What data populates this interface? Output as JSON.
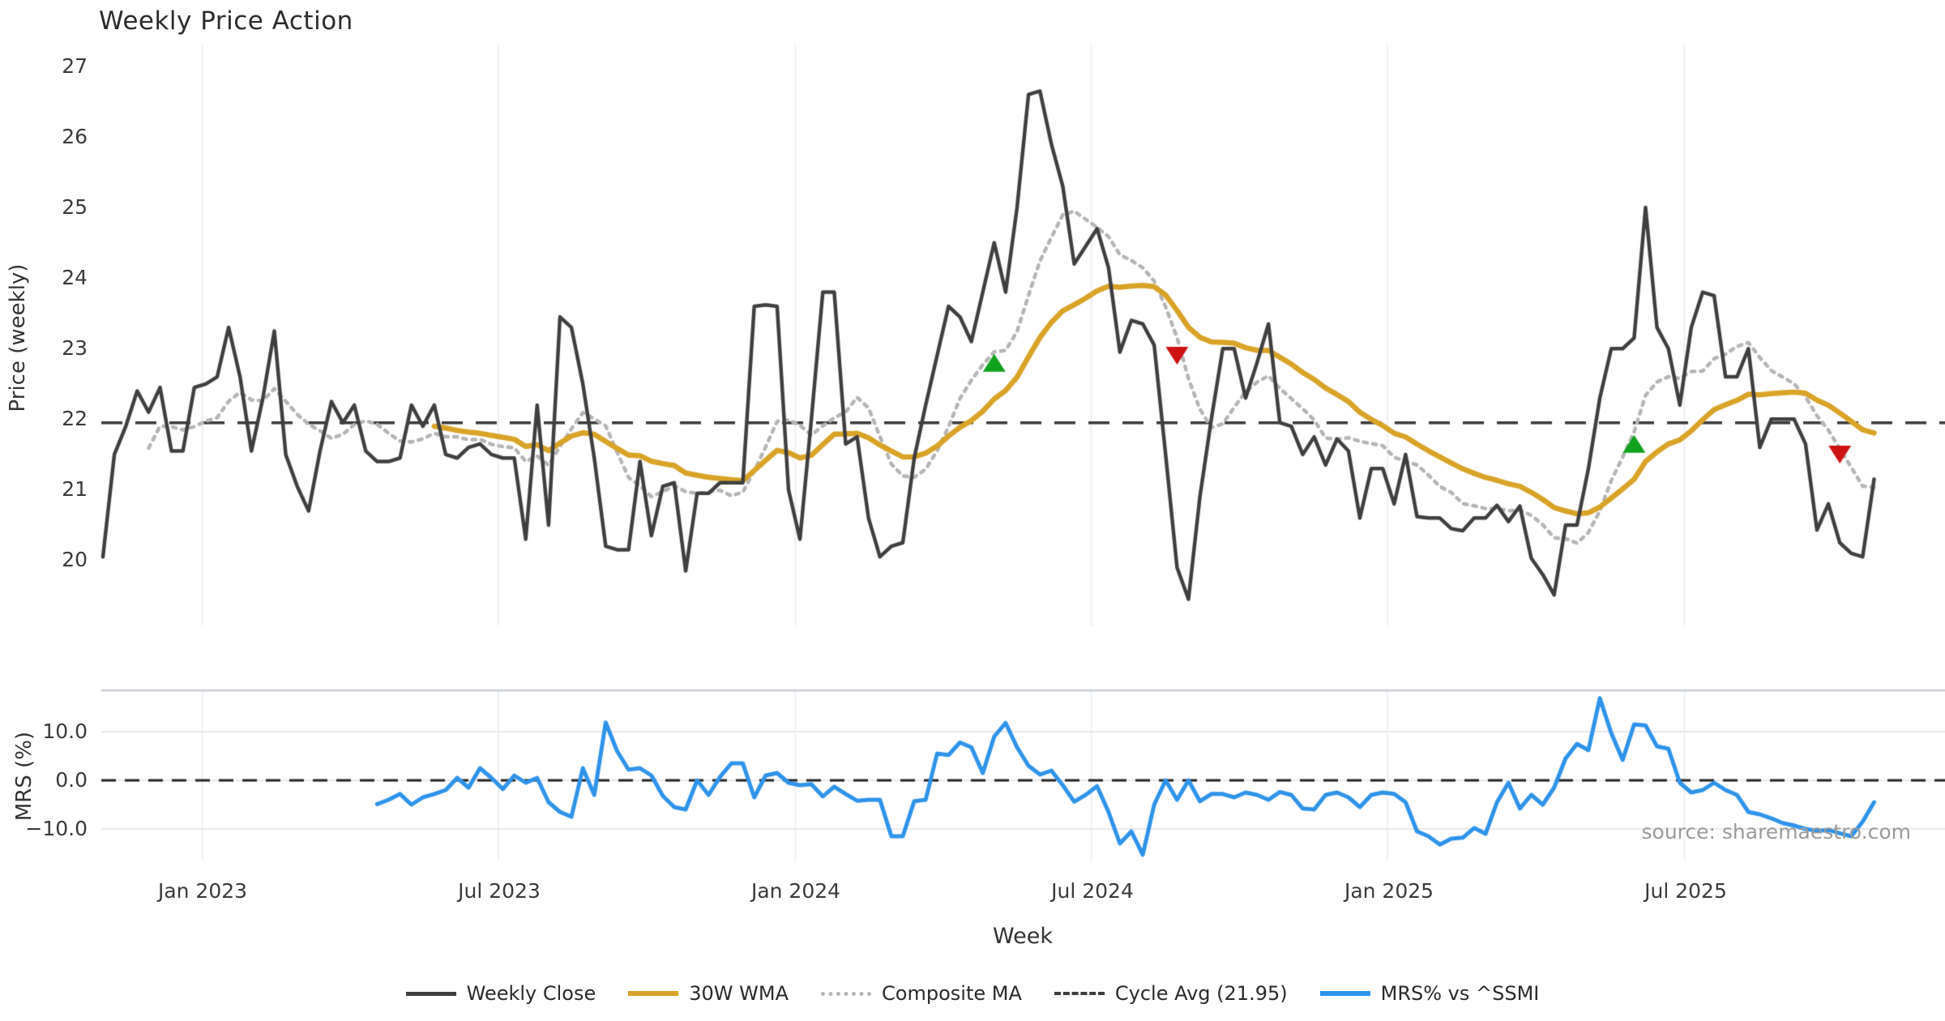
{
  "title": "Weekly Price Action",
  "source_note": "source: sharemaestro.com",
  "axes": {
    "price_label": "Price (weekly)",
    "mrs_label": "MRS (%)",
    "x_label": "Week",
    "price_ticks": [
      "27",
      "26",
      "25",
      "24",
      "23",
      "22",
      "21",
      "20"
    ],
    "mrs_ticks": [
      "10.0",
      "0.0",
      "−10.0"
    ],
    "x_ticks": [
      "Jan 2023",
      "Jul 2023",
      "Jan 2024",
      "Jul 2024",
      "Jan 2025",
      "Jul 2025"
    ]
  },
  "legend": [
    {
      "label": "Weekly Close",
      "style": "solid",
      "color": "#3f3f3f"
    },
    {
      "label": "30W WMA",
      "style": "solid",
      "color": "#d8a327"
    },
    {
      "label": "Composite MA",
      "style": "dotted",
      "color": "#b5b5b5"
    },
    {
      "label": "Cycle Avg (21.95)",
      "style": "dashed",
      "color": "#3a3a3a"
    },
    {
      "label": "MRS% vs ^SSMI",
      "style": "solid",
      "color": "#2e93ea"
    }
  ],
  "colors": {
    "close": "#3f3f3f",
    "wma": "#d8a327",
    "composite": "#b5b5b5",
    "cycle_dash": "#3a3a3a",
    "mrs": "#2e93ea",
    "buy_marker": "#11a21d",
    "sell_marker": "#cc1212",
    "grid_vertical": "#edeff3",
    "grid_horizontal": "#e8e8ec",
    "panel_spine": "#c6cbd3",
    "zero_dash": "#222222"
  },
  "chart_data": {
    "type": "line",
    "n_weeks": 156,
    "x": {
      "label": "Week",
      "tick_labels": [
        "Jan 2023",
        "Jul 2023",
        "Jan 2024",
        "Jul 2024",
        "Jan 2025",
        "Jul 2025"
      ],
      "tick_weeks": [
        8.7,
        34.6,
        60.6,
        86.5,
        112.4,
        138.4
      ]
    },
    "panels": [
      {
        "id": "price",
        "ylabel": "Price (weekly)",
        "ylim": [
          19.1,
          27.4
        ],
        "yticks": [
          20,
          21,
          22,
          23,
          24,
          25,
          26,
          27
        ],
        "cycle_avg": 21.95,
        "series": [
          {
            "name": "Weekly Close",
            "style": "solid",
            "values": [
              20.05,
              21.5,
              21.9,
              22.4,
              22.1,
              22.45,
              21.55,
              21.55,
              22.45,
              22.5,
              22.6,
              23.3,
              22.6,
              21.55,
              22.3,
              23.25,
              21.5,
              21.05,
              20.7,
              21.55,
              22.25,
              21.95,
              22.2,
              21.55,
              21.4,
              21.4,
              21.45,
              22.2,
              21.9,
              22.2,
              21.5,
              21.45,
              21.6,
              21.65,
              21.5,
              21.45,
              21.45,
              20.3,
              22.2,
              20.5,
              23.45,
              23.3,
              22.5,
              21.45,
              20.2,
              20.15,
              20.15,
              21.4,
              20.35,
              21.05,
              21.1,
              19.85,
              20.95,
              20.95,
              21.1,
              21.1,
              21.1,
              23.6,
              23.62,
              23.6,
              21.0,
              20.3,
              22.0,
              23.8,
              23.8,
              21.65,
              21.75,
              20.6,
              20.05,
              20.2,
              20.25,
              21.45,
              22.2,
              22.9,
              23.6,
              23.45,
              23.1,
              23.8,
              24.5,
              23.8,
              25.0,
              26.6,
              26.65,
              25.9,
              25.3,
              24.2,
              24.45,
              24.7,
              24.15,
              22.95,
              23.4,
              23.35,
              23.05,
              21.5,
              19.9,
              19.45,
              20.9,
              22.0,
              23.0,
              23.0,
              22.3,
              22.8,
              23.35,
              21.95,
              21.9,
              21.5,
              21.75,
              21.35,
              21.72,
              21.55,
              20.6,
              21.3,
              21.3,
              20.8,
              21.5,
              20.62,
              20.6,
              20.6,
              20.45,
              20.42,
              20.6,
              20.6,
              20.78,
              20.55,
              20.77,
              20.03,
              19.8,
              19.51,
              20.5,
              20.5,
              21.3,
              22.3,
              23.0,
              23.0,
              23.15,
              25.0,
              23.3,
              23.0,
              22.2,
              23.3,
              23.8,
              23.75,
              22.6,
              22.6,
              23.0,
              21.6,
              22.0,
              22.0,
              22.0,
              21.65,
              20.43,
              20.8,
              20.25,
              20.1,
              20.05,
              21.15
            ]
          },
          {
            "name": "30W WMA",
            "style": "solid",
            "derived": "weighted_ma_30_of_weekly_close",
            "window": 30
          },
          {
            "name": "Composite MA",
            "style": "dotted",
            "derived": "mean_of_sma5_and_sma15_of_weekly_close",
            "windows": [
              5,
              15
            ]
          },
          {
            "name": "Cycle Avg (21.95)",
            "style": "dashed",
            "value": 21.95
          }
        ],
        "markers": {
          "buy": [
            {
              "week": 78,
              "price": 22.8
            },
            {
              "week": 134,
              "price": 21.65
            }
          ],
          "sell": [
            {
              "week": 94,
              "price": 22.9
            },
            {
              "week": 152,
              "price": 21.5
            }
          ]
        }
      },
      {
        "id": "mrs",
        "ylabel": "MRS (%)",
        "ylim": [
          -16.2,
          18.5
        ],
        "yticks": [
          -10,
          0,
          10
        ],
        "zero_line": 0,
        "series": [
          {
            "name": "MRS% vs ^SSMI",
            "style": "solid",
            "start_week": 24,
            "values": [
              -4.9,
              -4.0,
              -2.8,
              -5.0,
              -3.5,
              -2.8,
              -2.0,
              0.5,
              -1.5,
              2.5,
              0.5,
              -1.8,
              1.0,
              -0.5,
              0.5,
              -4.5,
              -6.5,
              -7.5,
              2.5,
              -3.0,
              11.9,
              6.0,
              2.2,
              2.5,
              1.0,
              -3.2,
              -5.5,
              -6.0,
              0.0,
              -3.0,
              0.7,
              3.5,
              3.5,
              -3.5,
              1.0,
              1.5,
              -0.5,
              -1.0,
              -0.8,
              -3.3,
              -1.3,
              -2.8,
              -4.2,
              -4.0,
              -4.0,
              -11.5,
              -11.5,
              -4.3,
              -4.0,
              5.5,
              5.2,
              7.8,
              6.8,
              1.5,
              9.0,
              11.8,
              6.8,
              3.0,
              1.2,
              2.0,
              -1.0,
              -4.4,
              -3.0,
              -1.2,
              -6.5,
              -13.0,
              -10.5,
              -15.3,
              -5.0,
              0.0,
              -4.0,
              0.0,
              -4.3,
              -2.8,
              -2.8,
              -3.5,
              -2.5,
              -3.0,
              -4.0,
              -2.4,
              -3.0,
              -5.8,
              -6.0,
              -3.0,
              -2.5,
              -3.5,
              -5.5,
              -3.0,
              -2.5,
              -2.8,
              -4.5,
              -10.5,
              -11.5,
              -13.2,
              -12.0,
              -11.8,
              -9.8,
              -11.0,
              -4.5,
              -0.5,
              -5.8,
              -3.0,
              -5.0,
              -1.5,
              4.5,
              7.5,
              6.2,
              16.9,
              9.7,
              4.2,
              11.5,
              11.3,
              7.0,
              6.5,
              -0.5,
              -2.5,
              -2.0,
              -0.5,
              -2.0,
              -3.0,
              -6.5,
              -7.0,
              -7.8,
              -8.8,
              -9.3,
              -10.0,
              -10.4,
              -10.2,
              -10.9,
              -11.5,
              -8.5,
              -4.5
            ]
          }
        ]
      }
    ]
  }
}
